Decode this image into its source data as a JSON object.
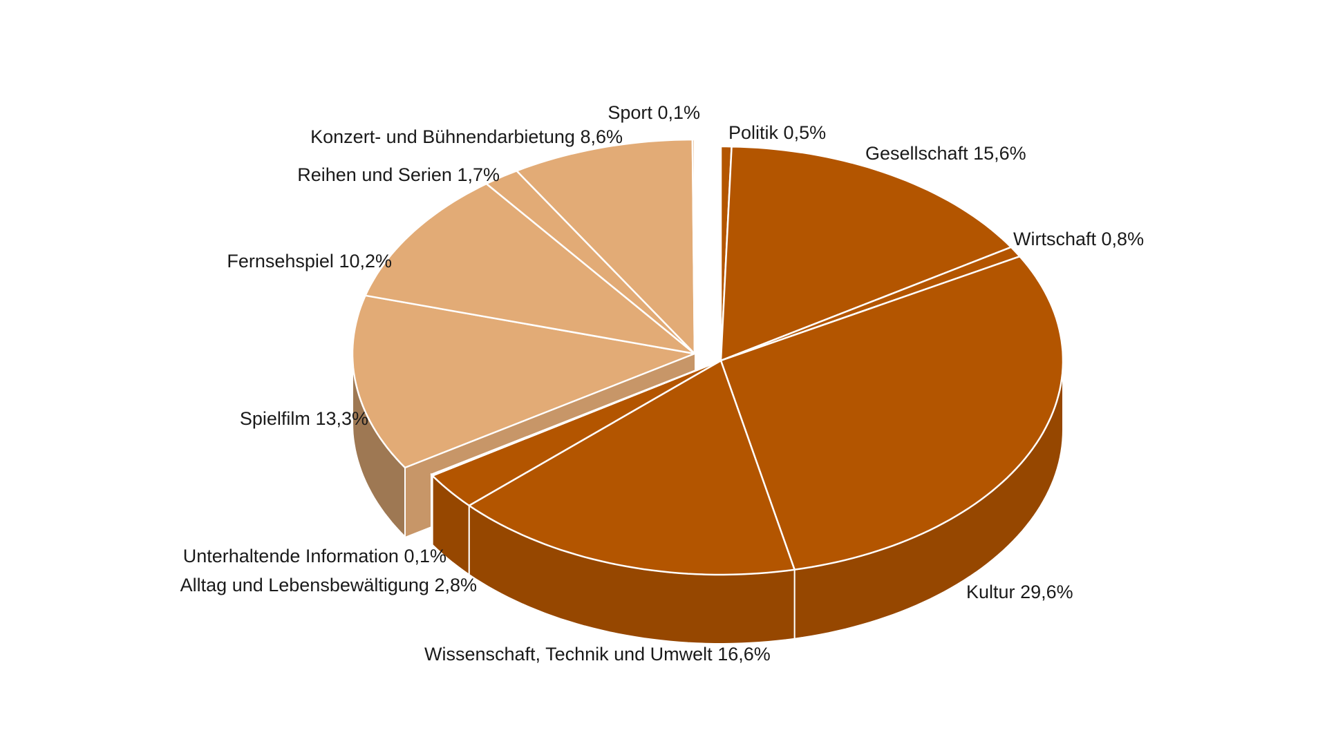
{
  "chart_data": {
    "type": "pie",
    "categories": [
      "Politik",
      "Gesellschaft",
      "Wirtschaft",
      "Kultur",
      "Wissenschaft, Technik und Umwelt",
      "Alltag und Lebensbewältigung",
      "Unterhaltende Information",
      "Spielfilm",
      "Fernsehspiel",
      "Reihen und Serien",
      "Konzert- und Bühnendarbietung",
      "Sport"
    ],
    "values": [
      0.5,
      15.6,
      0.8,
      29.6,
      16.6,
      2.8,
      0.1,
      13.3,
      10.2,
      1.7,
      8.6,
      0.1
    ],
    "value_labels": [
      "0,5%",
      "15,6%",
      "0,8%",
      "29,6%",
      "16,6%",
      "2,8%",
      "0,1%",
      "13,3%",
      "10,2%",
      "1,7%",
      "8,6%",
      "0,1%"
    ],
    "colors": [
      "#b35500",
      "#b35500",
      "#b35500",
      "#b35500",
      "#b35500",
      "#b35500",
      "#b35500",
      "#e2ab76",
      "#e2ab76",
      "#e2ab76",
      "#e2ab76",
      "#e2ab76"
    ]
  }
}
